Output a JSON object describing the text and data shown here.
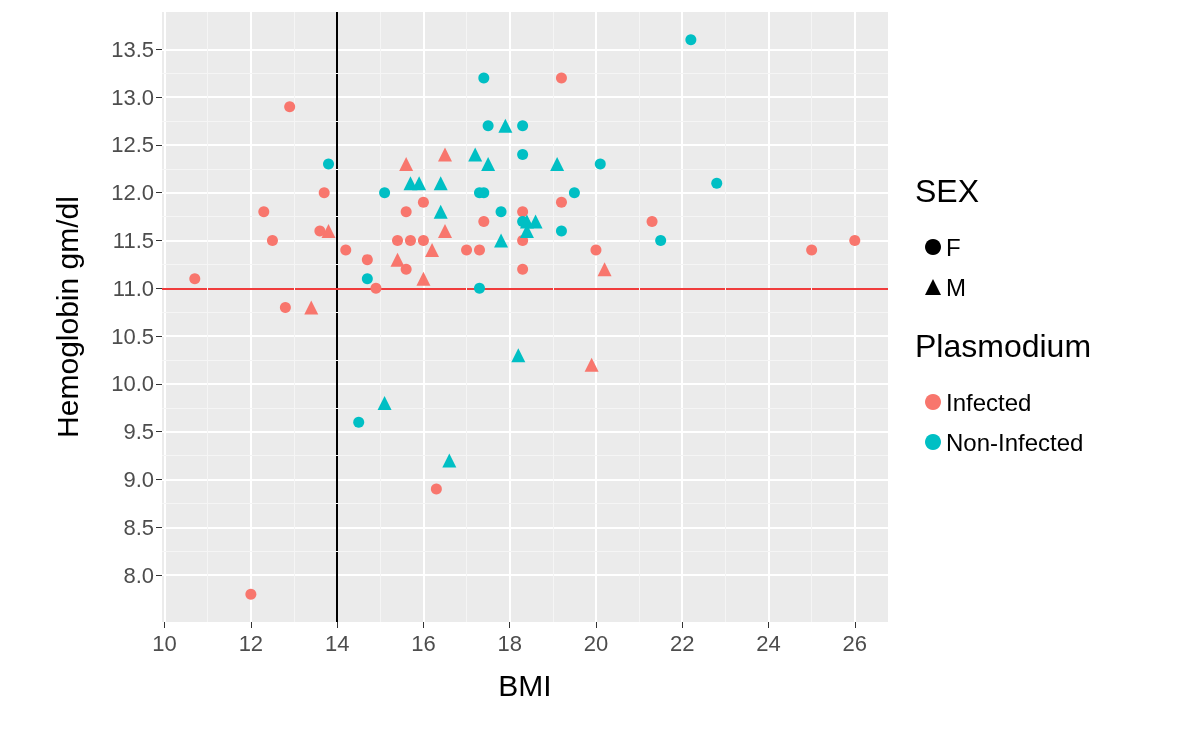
{
  "chart_data": {
    "type": "scatter",
    "xlabel": "BMI",
    "ylabel": "Hemoglobin gm/dl",
    "legend_title": "SEX",
    "annotations": [
      "Plasmodium"
    ],
    "xlim": [
      9.94,
      26.77
    ],
    "xticks": [
      10,
      12,
      14,
      16,
      18,
      20,
      22,
      24,
      26
    ],
    "ylim": [
      7.51,
      13.89
    ],
    "yticks": [
      {
        "value": 8,
        "label": "8.0"
      },
      8.5,
      {
        "value": 9,
        "label": "9.0"
      },
      9.5,
      {
        "value": 10,
        "label": "10.0"
      },
      10.5,
      {
        "value": 11,
        "label": "11.0"
      },
      11.5,
      {
        "value": 12,
        "label": "12.0"
      },
      12.5,
      {
        "value": 13,
        "label": "13.0"
      },
      13.5
    ],
    "grid": true,
    "legend": "right",
    "ref_lines": [
      {
        "axis": "x",
        "value": 14,
        "color": "#000000"
      },
      {
        "axis": "y",
        "value": 11,
        "color": "#f03c3c"
      }
    ],
    "series": [
      {
        "color": "#f8766d",
        "marker": "circle",
        "x": [
          12.9,
          13.7,
          16.0,
          12.3,
          15.6,
          18.3,
          17.4,
          13.6,
          18.3,
          15.4,
          15.7,
          16.0,
          12.5,
          14.2,
          17.0,
          17.3,
          14.7,
          15.6,
          18.3,
          10.7,
          14.9,
          19.2,
          19.2,
          21.3,
          26.0,
          20.0,
          25.0,
          12.8,
          16.3,
          12.0
        ],
        "values": [
          12.9,
          12.0,
          11.9,
          11.8,
          11.8,
          11.8,
          11.7,
          11.6,
          11.5,
          11.5,
          11.5,
          11.5,
          11.5,
          11.4,
          11.4,
          11.4,
          11.3,
          11.2,
          11.2,
          11.1,
          11.0,
          13.2,
          11.9,
          11.7,
          11.5,
          11.4,
          11.4,
          10.8,
          8.9,
          7.8
        ]
      },
      {
        "color": "#f8766d",
        "marker": "triangle",
        "x": [
          16.5,
          15.6,
          16.5,
          13.8,
          16.2,
          15.4,
          16.0,
          20.2,
          13.4,
          19.9
        ],
        "values": [
          12.4,
          12.3,
          11.6,
          11.6,
          11.4,
          11.3,
          11.1,
          11.2,
          10.8,
          10.2
        ]
      },
      {
        "color": "#00bfc4",
        "marker": "circle",
        "x": [
          17.4,
          17.5,
          18.3,
          18.3,
          13.8,
          15.1,
          17.3,
          17.4,
          17.8,
          18.3,
          14.7,
          17.3,
          22.2,
          20.1,
          22.8,
          19.5,
          19.2,
          21.5,
          14.5
        ],
        "values": [
          13.2,
          12.7,
          12.7,
          12.4,
          12.3,
          12.0,
          12.0,
          12.0,
          11.8,
          11.7,
          11.1,
          11.0,
          13.6,
          12.3,
          12.1,
          12.0,
          11.6,
          11.5,
          9.6
        ]
      },
      {
        "color": "#00bfc4",
        "marker": "triangle",
        "x": [
          17.9,
          17.2,
          17.5,
          15.7,
          15.9,
          16.4,
          16.4,
          18.4,
          18.6,
          18.4,
          17.8,
          19.1,
          18.2,
          15.1,
          16.6
        ],
        "values": [
          12.7,
          12.4,
          12.3,
          12.1,
          12.1,
          12.1,
          11.8,
          11.7,
          11.7,
          11.6,
          11.5,
          12.3,
          10.3,
          9.8,
          9.2
        ]
      },
      {
        "name": "F",
        "color": "#000000",
        "marker": "circle"
      },
      {
        "name": "M",
        "color": "#000000",
        "marker": "triangle"
      },
      {
        "name": "Infected",
        "color": "#f8766d",
        "marker": "circle"
      },
      {
        "name": "Non-Infected",
        "color": "#00bfc4",
        "marker": "circle"
      }
    ]
  }
}
